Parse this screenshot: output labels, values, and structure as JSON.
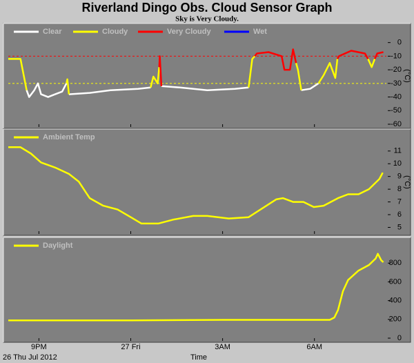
{
  "chart_data": [
    {
      "type": "line",
      "title": "Riverland Dingo Obs. Cloud Sensor Graph",
      "subtitle": "Sky is Very Cloudy.",
      "ylabel": "(°C)",
      "x": [
        20.0,
        20.4,
        20.6,
        20.68,
        20.85,
        20.97,
        21.07,
        21.3,
        21.53,
        21.76,
        21.9,
        21.93,
        21.98,
        22.66,
        23.34,
        24.24,
        24.65,
        24.74,
        24.88,
        24.93,
        24.95,
        25.0,
        25.6,
        26.5,
        27.4,
        27.85,
        27.97,
        28.05,
        28.12,
        28.5,
        28.93,
        29.02,
        29.2,
        29.3,
        29.4,
        29.46,
        29.57,
        29.86,
        30.13,
        30.3,
        30.5,
        30.68,
        30.75,
        30.8,
        31.2,
        31.65,
        31.75,
        31.87,
        31.97,
        32.05,
        32.25
      ],
      "series": [
        {
          "name": "Clear",
          "color": "#ffffff",
          "values": [
            null,
            null,
            -35,
            -40,
            -35,
            -30,
            -38,
            -40,
            -38,
            -36,
            -30,
            null,
            -38,
            -37,
            -35,
            -34,
            -33,
            null,
            null,
            null,
            null,
            -32,
            -33,
            -35,
            -34,
            -33,
            null,
            null,
            null,
            null,
            null,
            null,
            null,
            null,
            null,
            null,
            -35,
            -34,
            -30,
            null,
            null,
            null,
            null,
            null,
            null,
            null,
            null,
            null,
            null,
            null,
            null
          ]
        },
        {
          "name": "Cloudy",
          "color": "#ffff00",
          "values": [
            -12,
            -12,
            -35,
            null,
            null,
            null,
            null,
            null,
            null,
            null,
            -30,
            -27,
            -38,
            null,
            null,
            null,
            -33,
            -25,
            -30,
            -18,
            null,
            null,
            null,
            null,
            null,
            -33,
            -12,
            -10,
            null,
            null,
            null,
            null,
            null,
            null,
            -15,
            -20,
            -35,
            null,
            -30,
            -24,
            -15,
            -26,
            -12,
            null,
            null,
            null,
            -12,
            -18,
            -12,
            null,
            null
          ]
        },
        {
          "name": "Very Cloudy",
          "color": "#ff0000",
          "values": [
            null,
            null,
            null,
            null,
            null,
            null,
            null,
            null,
            null,
            null,
            null,
            null,
            null,
            null,
            null,
            null,
            null,
            null,
            null,
            -18,
            -10,
            -32,
            null,
            null,
            null,
            null,
            null,
            -10,
            -8,
            -7,
            -10,
            -20,
            -20,
            -5,
            -15,
            null,
            null,
            null,
            null,
            null,
            null,
            null,
            -12,
            -10,
            -6,
            -8,
            -12,
            null,
            -12,
            -8,
            -7
          ]
        },
        {
          "name": "Wet",
          "color": "#0000ff",
          "values": [
            null,
            null,
            null,
            null,
            null,
            null,
            null,
            null,
            null,
            null,
            null,
            null,
            null,
            null,
            null,
            null,
            null,
            null,
            null,
            null,
            null,
            null,
            null,
            null,
            null,
            null,
            null,
            null,
            null,
            null,
            null,
            null,
            null,
            null,
            null,
            null,
            null,
            null,
            null,
            null,
            null,
            null,
            null,
            null,
            null,
            null,
            null,
            null,
            null,
            null,
            null
          ]
        }
      ],
      "thresholds": [
        {
          "value": -10,
          "color": "#ff0000"
        },
        {
          "value": -30,
          "color": "#ffff00"
        }
      ],
      "xlim": [
        20,
        32.35
      ],
      "ylim": [
        -60,
        11
      ],
      "yticks": [
        0,
        -10,
        -20,
        -30,
        -40,
        -50,
        -60
      ]
    },
    {
      "type": "line",
      "ylabel": "(°C)",
      "x": [
        20.0,
        20.4,
        20.74,
        21.07,
        21.53,
        21.98,
        22.3,
        22.66,
        23.1,
        23.57,
        24.0,
        24.35,
        24.9,
        25.37,
        26.04,
        26.5,
        27.2,
        27.85,
        28.3,
        28.75,
        28.97,
        29.3,
        29.64,
        29.98,
        30.3,
        30.77,
        31.1,
        31.44,
        31.78,
        32.12,
        32.23
      ],
      "series": [
        {
          "name": "Ambient Temp",
          "color": "#ffff00",
          "values": [
            11.3,
            11.3,
            10.8,
            10.1,
            9.7,
            9.2,
            8.6,
            7.3,
            6.7,
            6.4,
            5.8,
            5.3,
            5.3,
            5.6,
            5.9,
            5.9,
            5.7,
            5.8,
            6.5,
            7.2,
            7.3,
            7.0,
            7.0,
            6.6,
            6.7,
            7.3,
            7.6,
            7.6,
            8.0,
            8.8,
            9.3
          ]
        }
      ],
      "xlim": [
        20,
        32.35
      ],
      "ylim": [
        4.7,
        12.4
      ],
      "yticks": [
        11,
        10,
        9,
        8,
        7,
        6,
        5
      ]
    },
    {
      "type": "line",
      "xlabel": "Time",
      "date_label": "26 Thu Jul 2012",
      "x": [
        20.0,
        24.0,
        27.0,
        30.5,
        30.65,
        30.77,
        30.93,
        31.1,
        31.44,
        31.78,
        32.0,
        32.07,
        32.18,
        32.25
      ],
      "series": [
        {
          "name": "Daylight",
          "color": "#ffff00",
          "values": [
            190,
            190,
            195,
            195,
            220,
            300,
            500,
            620,
            720,
            780,
            850,
            900,
            830,
            810
          ]
        }
      ],
      "xlim": [
        20,
        32.35
      ],
      "ylim": [
        0,
        1030
      ],
      "yticks": [
        800,
        600,
        400,
        200,
        0
      ],
      "xticks": [
        {
          "value": 21,
          "label": "9PM"
        },
        {
          "value": 24,
          "label": "27 Fri"
        },
        {
          "value": 27,
          "label": "3AM"
        },
        {
          "value": 30,
          "label": "6AM"
        }
      ]
    }
  ]
}
